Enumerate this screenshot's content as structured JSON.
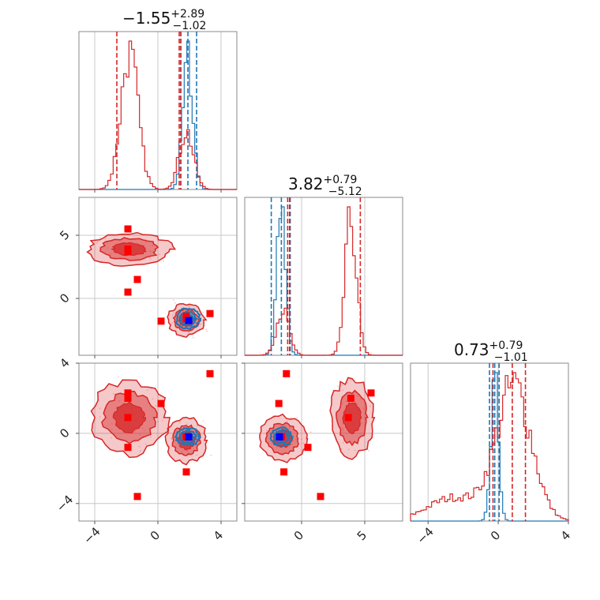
{
  "chart_data": {
    "type": "corner",
    "parameters": [
      {
        "title_value": "−1.55",
        "title_sup": "+2.89",
        "title_sub": "−1.02",
        "range": [
          -5,
          5
        ],
        "ticks": [
          -4,
          0,
          4
        ],
        "tick_labels": [
          "−4",
          "0",
          "4"
        ]
      },
      {
        "title_value": "3.82",
        "title_sup": "+0.79",
        "title_sub": "−5.12",
        "range": [
          -4.5,
          8
        ],
        "ticks": [
          0,
          5
        ],
        "tick_labels": [
          "0",
          "5"
        ]
      },
      {
        "title_value": "0.73",
        "title_sup": "+0.79",
        "title_sub": "−1.01",
        "range": [
          -5,
          4
        ],
        "ticks": [
          -4,
          0,
          4
        ],
        "tick_labels": [
          "−4",
          "0",
          "4"
        ]
      }
    ],
    "series": [
      {
        "color": "#1f77b4",
        "quantile_lines": [
          [
            1.45,
            2.45,
            1.9
          ],
          [
            -2.4,
            -0.9,
            -1.6
          ],
          [
            -0.5,
            0.05,
            -0.2
          ]
        ],
        "histograms": [
          {
            "center": 1.9,
            "sigma": 0.32,
            "weight": 1.0
          },
          {
            "center": -1.6,
            "sigma": 0.35,
            "weight": 1.0
          },
          {
            "center": -0.2,
            "sigma": 0.22,
            "weight": 1.0
          }
        ],
        "blobs_2d": {
          "0-1": [
            {
              "cx": 1.9,
              "cy": -1.6,
              "sx": 0.32,
              "sy": 0.35,
              "w": 1
            }
          ],
          "0-2": [
            {
              "cx": 1.9,
              "cy": -0.2,
              "sx": 0.32,
              "sy": 0.22,
              "w": 1
            }
          ],
          "1-2": [
            {
              "cx": -1.6,
              "cy": -0.2,
              "sx": 0.35,
              "sy": 0.22,
              "w": 1
            }
          ]
        }
      },
      {
        "color": "#d62728",
        "quantile_lines": [
          [
            -2.6,
            1.35,
            1.45
          ],
          [
            -0.95,
            4.65,
            -1.1
          ],
          [
            -0.3,
            1.55,
            0.8
          ]
        ],
        "histograms": [
          {
            "components": [
              {
                "center": -1.8,
                "sigma": 0.55,
                "weight": 0.7
              },
              {
                "center": 1.8,
                "sigma": 0.45,
                "weight": 0.3
              }
            ]
          },
          {
            "components": [
              {
                "center": 3.9,
                "sigma": 0.45,
                "weight": 0.75
              },
              {
                "center": -1.5,
                "sigma": 0.5,
                "weight": 0.25
              }
            ]
          },
          {
            "components": [
              {
                "center": 0.9,
                "sigma": 1.0,
                "weight": 0.85
              },
              {
                "center": -2.5,
                "sigma": 1.5,
                "weight": 0.15
              }
            ]
          }
        ],
        "blobs_2d": {
          "0-1": [
            {
              "cx": -1.8,
              "cy": 3.9,
              "sx": 1.15,
              "sy": 0.55,
              "w": 0.7
            },
            {
              "cx": 1.8,
              "cy": -1.7,
              "sx": 0.5,
              "sy": 0.55,
              "w": 0.3
            }
          ],
          "0-2": [
            {
              "cx": -1.8,
              "cy": 0.9,
              "sx": 1.05,
              "sy": 0.9,
              "w": 0.65
            },
            {
              "cx": 1.8,
              "cy": -0.4,
              "sx": 0.55,
              "sy": 0.55,
              "w": 0.35
            }
          ],
          "1-2": [
            {
              "cx": 4.0,
              "cy": 0.9,
              "sx": 0.75,
              "sy": 0.95,
              "w": 0.6
            },
            {
              "cx": -1.5,
              "cy": -0.3,
              "sx": 0.8,
              "sy": 0.55,
              "w": 0.4
            }
          ]
        }
      }
    ],
    "markers": {
      "red_squares": [
        [
          -1.9,
          5.5,
          2.3
        ],
        [
          -1.9,
          3.9,
          2.0
        ],
        [
          -1.9,
          3.7,
          0.9
        ],
        [
          -1.3,
          1.5,
          -3.6
        ],
        [
          -1.9,
          0.5,
          -0.8
        ],
        [
          0.2,
          -1.8,
          1.7
        ],
        [
          3.3,
          -1.2,
          3.4
        ],
        [
          1.8,
          -1.4,
          -2.2
        ],
        [
          1.8,
          -1.6,
          -0.2
        ]
      ],
      "blue_square": [
        1.95,
        -1.75,
        -0.2
      ]
    },
    "grid": true
  }
}
